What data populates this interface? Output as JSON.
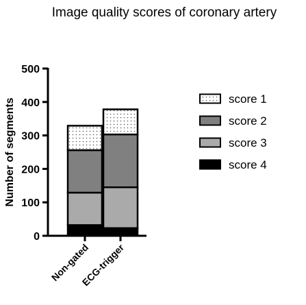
{
  "chart_data": {
    "type": "bar",
    "stacked": true,
    "title": "Image quality scores of coronary artery",
    "xlabel": "",
    "ylabel": "Number of segments",
    "ylim": [
      0,
      500
    ],
    "yticks": [
      0,
      100,
      200,
      300,
      400,
      500
    ],
    "categories": [
      "Non-gated",
      "ECG-trigger"
    ],
    "series": [
      {
        "name": "score 4",
        "values": [
          32,
          23
        ],
        "color": "#000000",
        "pattern": "solid"
      },
      {
        "name": "score 3",
        "values": [
          97,
          122
        ],
        "color": "#aaaaaa",
        "pattern": "solid"
      },
      {
        "name": "score 2",
        "values": [
          127,
          158
        ],
        "color": "#808080",
        "pattern": "solid"
      },
      {
        "name": "score 1",
        "values": [
          73,
          75
        ],
        "color": "#ffffff",
        "pattern": "dotted"
      }
    ],
    "legend_order": [
      "score 1",
      "score 2",
      "score 3",
      "score 4"
    ],
    "legend_position": "right",
    "grid": false
  }
}
